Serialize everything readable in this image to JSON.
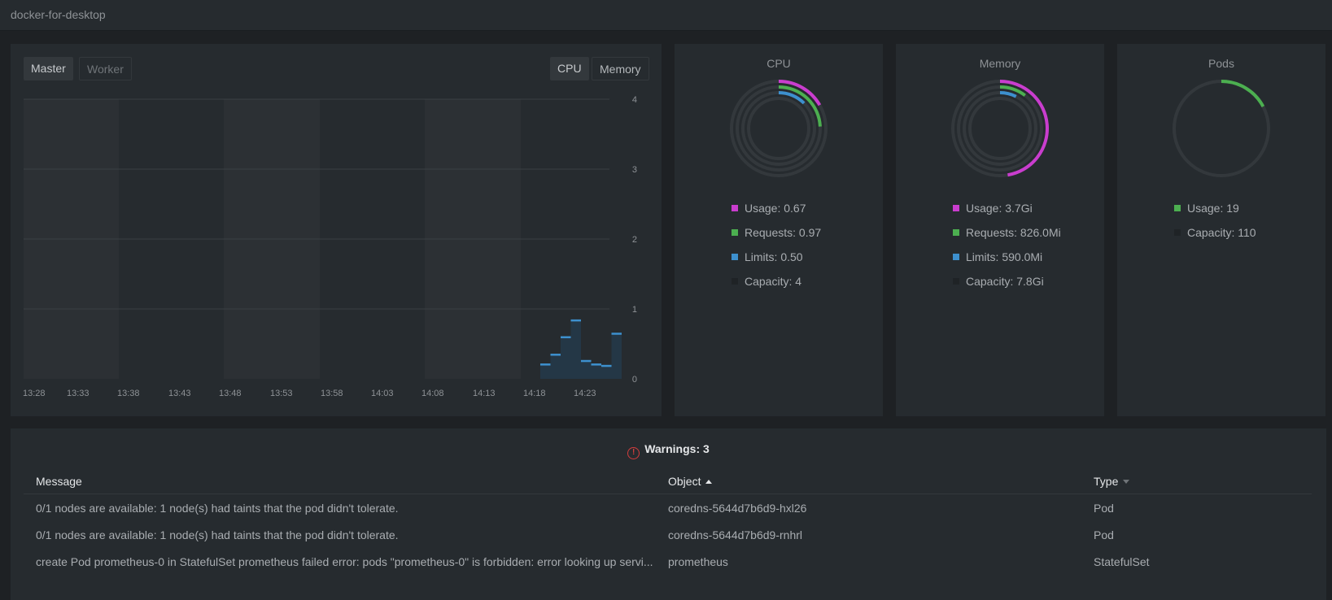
{
  "topbar": {
    "cluster_name": "docker-for-desktop"
  },
  "chart_panel": {
    "tabs_left": [
      "Master",
      "Worker"
    ],
    "tabs_right": [
      "CPU",
      "Memory"
    ],
    "active_left": "Master",
    "active_right": "CPU"
  },
  "chart_data": {
    "type": "bar",
    "x_ticks": [
      "13:28",
      "13:33",
      "13:38",
      "13:43",
      "13:48",
      "13:53",
      "13:58",
      "14:03",
      "14:08",
      "14:13",
      "14:18",
      "14:23"
    ],
    "y_ticks": [
      0,
      1,
      2,
      3,
      4
    ],
    "ylim": [
      0,
      4
    ],
    "values": [
      0.22,
      0.36,
      0.61,
      0.85,
      0.27,
      0.22,
      0.2,
      0.66
    ],
    "colors": {
      "bar_fill": "#243746",
      "bar_top": "#3d90ce"
    }
  },
  "cpu": {
    "title": "CPU",
    "legend": [
      {
        "label": "Usage: 0.67",
        "color": "#c93dce"
      },
      {
        "label": "Requests: 0.97",
        "color": "#4caf50"
      },
      {
        "label": "Limits: 0.50",
        "color": "#3d90ce"
      },
      {
        "label": "Capacity: 4",
        "color": "#1f2326"
      }
    ],
    "fractions": {
      "usage": 0.1675,
      "requests": 0.2425,
      "limits": 0.125
    }
  },
  "memory": {
    "title": "Memory",
    "legend": [
      {
        "label": "Usage: 3.7Gi",
        "color": "#c93dce"
      },
      {
        "label": "Requests: 826.0Mi",
        "color": "#4caf50"
      },
      {
        "label": "Limits: 590.0Mi",
        "color": "#3d90ce"
      },
      {
        "label": "Capacity: 7.8Gi",
        "color": "#1f2326"
      }
    ],
    "fractions": {
      "usage": 0.474,
      "requests": 0.103,
      "limits": 0.074
    }
  },
  "pods": {
    "title": "Pods",
    "legend": [
      {
        "label": "Usage: 19",
        "color": "#4caf50"
      },
      {
        "label": "Capacity: 110",
        "color": "#1f2326"
      }
    ],
    "fractions": {
      "usage": 0.173
    }
  },
  "warnings": {
    "title": "Warnings: 3",
    "columns": [
      "Message",
      "Object",
      "Type"
    ],
    "rows": [
      {
        "message": "0/1 nodes are available: 1 node(s) had taints that the pod didn't tolerate.",
        "object": "coredns-5644d7b6d9-hxl26",
        "type": "Pod"
      },
      {
        "message": "0/1 nodes are available: 1 node(s) had taints that the pod didn't tolerate.",
        "object": "coredns-5644d7b6d9-rnhrl",
        "type": "Pod"
      },
      {
        "message": "create Pod prometheus-0 in StatefulSet prometheus failed error: pods \"prometheus-0\" is forbidden: error looking up servi...",
        "object": "prometheus",
        "type": "StatefulSet"
      }
    ]
  }
}
